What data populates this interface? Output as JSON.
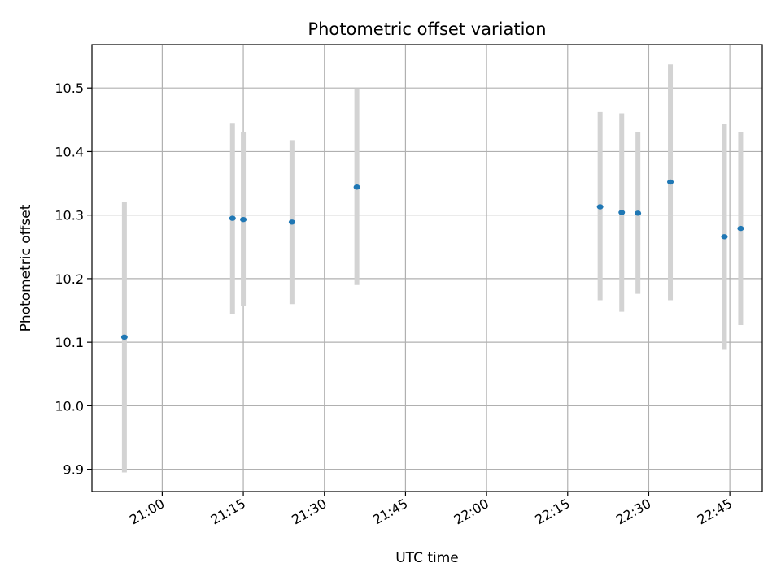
{
  "chart_data": {
    "type": "scatter",
    "title": "Photometric offset variation",
    "xlabel": "UTC time",
    "ylabel": "Photometric offset",
    "x_ticks": [
      "21:00",
      "21:15",
      "21:30",
      "21:45",
      "22:00",
      "22:15",
      "22:30",
      "22:45"
    ],
    "y_ticks": [
      "9.9",
      "10.0",
      "10.1",
      "10.2",
      "10.3",
      "10.4",
      "10.5"
    ],
    "xlim": [
      "20:47",
      "22:51"
    ],
    "ylim": [
      9.865,
      10.568
    ],
    "grid": true,
    "series": [
      {
        "x": [
          "20:53",
          "21:13",
          "21:15",
          "21:24",
          "21:36",
          "22:21",
          "22:25",
          "22:28",
          "22:34",
          "22:44",
          "22:47"
        ],
        "y": [
          10.108,
          10.295,
          10.293,
          10.289,
          10.344,
          10.313,
          10.304,
          10.303,
          10.352,
          10.266,
          10.279
        ],
        "err_low": [
          9.895,
          10.145,
          10.157,
          10.16,
          10.19,
          10.166,
          10.148,
          10.176,
          10.166,
          10.088,
          10.127
        ],
        "err_high": [
          10.321,
          10.445,
          10.43,
          10.418,
          10.499,
          10.462,
          10.46,
          10.431,
          10.537,
          10.444,
          10.431
        ]
      }
    ],
    "colors": {
      "point": "#1f77b4",
      "errorbar": "#d3d3d3",
      "grid": "#b0b0b0"
    }
  }
}
